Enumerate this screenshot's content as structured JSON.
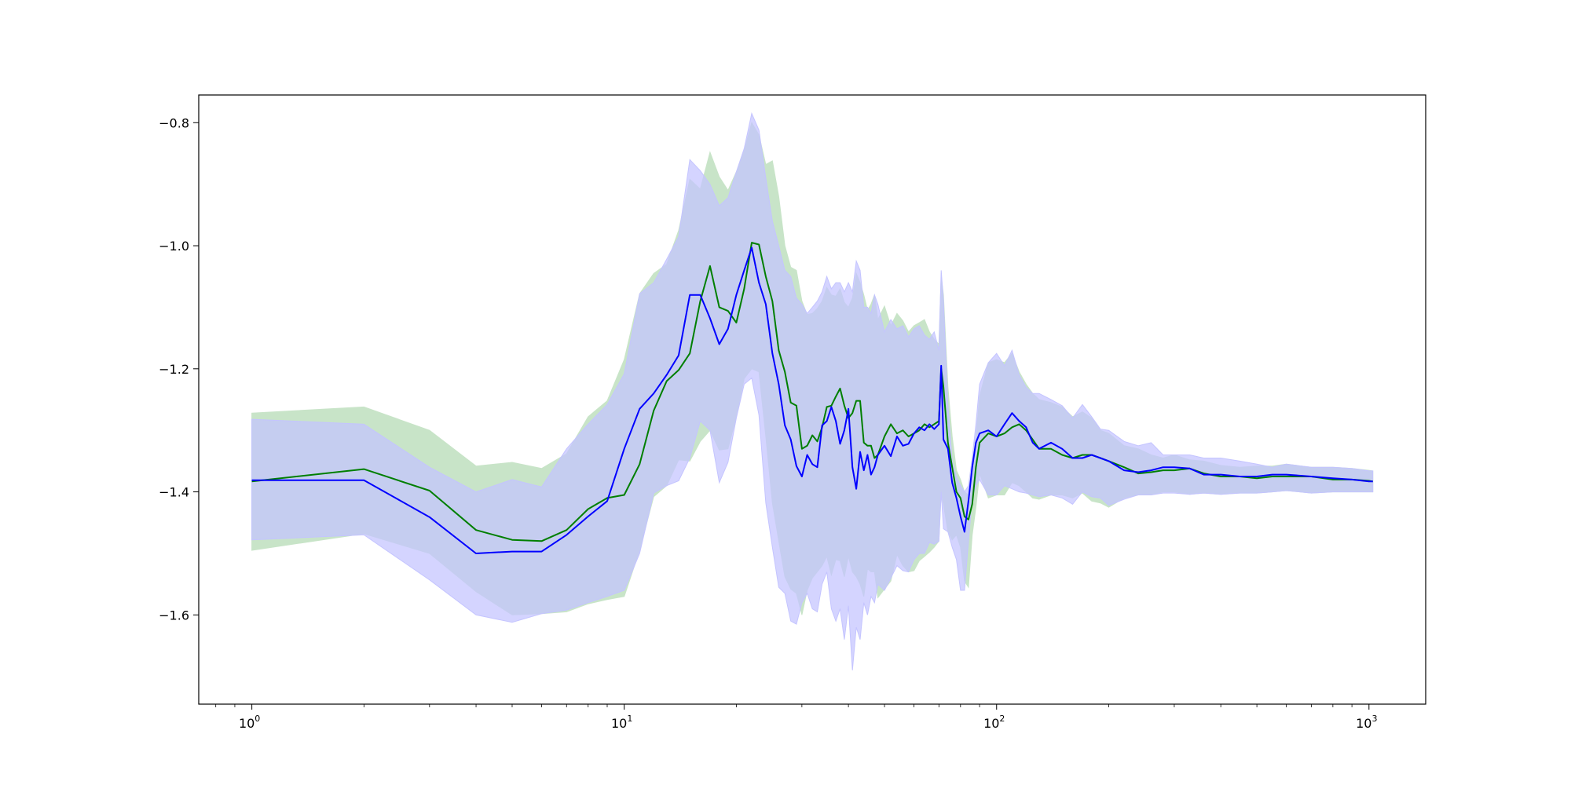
{
  "chart_data": {
    "type": "line",
    "title": "",
    "xlabel": "",
    "ylabel": "",
    "x_scale": "log",
    "xlim": [
      0.72,
      1420
    ],
    "ylim": [
      -1.745,
      -0.755
    ],
    "grid": false,
    "x_major_ticks": [
      {
        "value": 1,
        "base": "10",
        "exp": "0"
      },
      {
        "value": 10,
        "base": "10",
        "exp": "1"
      },
      {
        "value": 100,
        "base": "10",
        "exp": "2"
      },
      {
        "value": 1000,
        "base": "10",
        "exp": "3"
      }
    ],
    "y_ticks": [
      {
        "value": -0.8,
        "label": "−0.8"
      },
      {
        "value": -1.0,
        "label": "−1.0"
      },
      {
        "value": -1.2,
        "label": "−1.2"
      },
      {
        "value": -1.4,
        "label": "−1.4"
      },
      {
        "value": -1.6,
        "label": "−1.6"
      }
    ],
    "colors": {
      "green_line": "#007f00",
      "green_fill": "#c8e4c8",
      "blue_line": "#0000ff",
      "blue_fill": "#c4c4ff",
      "overlap_fill": "#a0b4d6"
    },
    "series": [
      {
        "color": "#007f00",
        "band_color": "#c8e4c8",
        "x": [
          1,
          2,
          3,
          4,
          5,
          6,
          7,
          8,
          9,
          10,
          11,
          12,
          13,
          14,
          15,
          16,
          17,
          18,
          19,
          20,
          21,
          22,
          23,
          24,
          25,
          26,
          27,
          28,
          29,
          30,
          31,
          32,
          33,
          34,
          35,
          36,
          37,
          38,
          39,
          40,
          41,
          42,
          43,
          44,
          45,
          46,
          47,
          48,
          50,
          52,
          54,
          56,
          58,
          60,
          62,
          64,
          66,
          68,
          70,
          71,
          72,
          74,
          76,
          78,
          80,
          82,
          84,
          86,
          88,
          90,
          95,
          100,
          105,
          110,
          115,
          120,
          125,
          130,
          140,
          150,
          160,
          170,
          180,
          190,
          200,
          220,
          240,
          260,
          280,
          300,
          330,
          360,
          400,
          450,
          500,
          550,
          600,
          700,
          800,
          900,
          1000,
          1024
        ],
        "y": [
          -1.383,
          -1.363,
          -1.398,
          -1.462,
          -1.478,
          -1.48,
          -1.462,
          -1.428,
          -1.41,
          -1.405,
          -1.355,
          -1.268,
          -1.22,
          -1.202,
          -1.175,
          -1.09,
          -1.033,
          -1.1,
          -1.106,
          -1.125,
          -1.07,
          -0.995,
          -0.998,
          -1.05,
          -1.09,
          -1.17,
          -1.205,
          -1.255,
          -1.26,
          -1.33,
          -1.325,
          -1.308,
          -1.318,
          -1.295,
          -1.262,
          -1.26,
          -1.245,
          -1.232,
          -1.26,
          -1.28,
          -1.272,
          -1.252,
          -1.252,
          -1.32,
          -1.325,
          -1.325,
          -1.345,
          -1.34,
          -1.31,
          -1.29,
          -1.305,
          -1.3,
          -1.31,
          -1.305,
          -1.3,
          -1.29,
          -1.295,
          -1.29,
          -1.285,
          -1.2,
          -1.23,
          -1.32,
          -1.36,
          -1.4,
          -1.41,
          -1.44,
          -1.445,
          -1.42,
          -1.36,
          -1.32,
          -1.305,
          -1.31,
          -1.305,
          -1.295,
          -1.29,
          -1.3,
          -1.315,
          -1.33,
          -1.33,
          -1.34,
          -1.345,
          -1.34,
          -1.34,
          -1.345,
          -1.35,
          -1.36,
          -1.37,
          -1.368,
          -1.365,
          -1.365,
          -1.362,
          -1.37,
          -1.375,
          -1.375,
          -1.378,
          -1.375,
          -1.375,
          -1.375,
          -1.38,
          -1.38,
          -1.382,
          -1.383
        ],
        "upper": [
          -1.272,
          -1.262,
          -1.3,
          -1.358,
          -1.352,
          -1.362,
          -1.338,
          -1.278,
          -1.252,
          -1.185,
          -1.078,
          -1.045,
          -1.03,
          -0.975,
          -0.892,
          -0.908,
          -0.848,
          -0.888,
          -0.91,
          -0.88,
          -0.845,
          -0.8,
          -0.82,
          -0.868,
          -0.862,
          -0.92,
          -1.0,
          -1.035,
          -1.04,
          -1.09,
          -1.112,
          -1.11,
          -1.102,
          -1.09,
          -1.068,
          -1.08,
          -1.082,
          -1.07,
          -1.092,
          -1.1,
          -1.085,
          -1.045,
          -1.06,
          -1.08,
          -1.105,
          -1.095,
          -1.08,
          -1.12,
          -1.098,
          -1.13,
          -1.11,
          -1.122,
          -1.14,
          -1.13,
          -1.125,
          -1.12,
          -1.14,
          -1.152,
          -1.16,
          -1.05,
          -1.08,
          -1.23,
          -1.31,
          -1.365,
          -1.38,
          -1.4,
          -1.405,
          -1.35,
          -1.31,
          -1.245,
          -1.19,
          -1.185,
          -1.19,
          -1.175,
          -1.205,
          -1.225,
          -1.24,
          -1.25,
          -1.255,
          -1.262,
          -1.278,
          -1.27,
          -1.28,
          -1.3,
          -1.305,
          -1.325,
          -1.33,
          -1.34,
          -1.345,
          -1.34,
          -1.348,
          -1.35,
          -1.357,
          -1.36,
          -1.358,
          -1.358,
          -1.355,
          -1.36,
          -1.36,
          -1.362,
          -1.365,
          -1.366
        ],
        "lower": [
          -1.495,
          -1.468,
          -1.5,
          -1.562,
          -1.6,
          -1.598,
          -1.595,
          -1.582,
          -1.575,
          -1.57,
          -1.495,
          -1.408,
          -1.39,
          -1.348,
          -1.35,
          -1.318,
          -1.3,
          -1.332,
          -1.33,
          -1.278,
          -1.216,
          -1.2,
          -1.205,
          -1.31,
          -1.418,
          -1.48,
          -1.538,
          -1.558,
          -1.565,
          -1.6,
          -1.56,
          -1.54,
          -1.53,
          -1.52,
          -1.505,
          -1.535,
          -1.51,
          -1.512,
          -1.538,
          -1.505,
          -1.53,
          -1.538,
          -1.55,
          -1.57,
          -1.525,
          -1.53,
          -1.53,
          -1.572,
          -1.558,
          -1.545,
          -1.502,
          -1.52,
          -1.53,
          -1.528,
          -1.512,
          -1.505,
          -1.498,
          -1.49,
          -1.48,
          -1.4,
          -1.42,
          -1.465,
          -1.478,
          -1.47,
          -1.49,
          -1.545,
          -1.555,
          -1.47,
          -1.425,
          -1.37,
          -1.41,
          -1.405,
          -1.405,
          -1.385,
          -1.39,
          -1.4,
          -1.41,
          -1.412,
          -1.405,
          -1.405,
          -1.41,
          -1.402,
          -1.415,
          -1.418,
          -1.425,
          -1.41,
          -1.405,
          -1.405,
          -1.4,
          -1.4,
          -1.404,
          -1.402,
          -1.404,
          -1.402,
          -1.402,
          -1.4,
          -1.398,
          -1.402,
          -1.4,
          -1.4,
          -1.4,
          -1.4
        ]
      },
      {
        "color": "#0000ff",
        "band_color": "#c4c4ff",
        "x": [
          1,
          2,
          3,
          4,
          5,
          6,
          7,
          8,
          9,
          10,
          11,
          12,
          13,
          14,
          15,
          16,
          17,
          18,
          19,
          20,
          21,
          22,
          23,
          24,
          25,
          26,
          27,
          28,
          29,
          30,
          31,
          32,
          33,
          34,
          35,
          36,
          37,
          38,
          39,
          40,
          41,
          42,
          43,
          44,
          45,
          46,
          47,
          48,
          50,
          52,
          54,
          56,
          58,
          60,
          62,
          64,
          66,
          68,
          70,
          71,
          72,
          74,
          76,
          78,
          80,
          82,
          84,
          86,
          88,
          90,
          95,
          100,
          105,
          110,
          115,
          120,
          125,
          130,
          140,
          150,
          160,
          170,
          180,
          190,
          200,
          220,
          240,
          260,
          280,
          300,
          330,
          360,
          400,
          450,
          500,
          550,
          600,
          700,
          800,
          900,
          1000,
          1024
        ],
        "y": [
          -1.381,
          -1.381,
          -1.441,
          -1.5,
          -1.497,
          -1.497,
          -1.47,
          -1.44,
          -1.415,
          -1.33,
          -1.265,
          -1.24,
          -1.21,
          -1.178,
          -1.08,
          -1.08,
          -1.118,
          -1.16,
          -1.135,
          -1.08,
          -1.04,
          -1.003,
          -1.06,
          -1.095,
          -1.175,
          -1.225,
          -1.292,
          -1.315,
          -1.358,
          -1.375,
          -1.34,
          -1.355,
          -1.36,
          -1.292,
          -1.285,
          -1.262,
          -1.285,
          -1.322,
          -1.3,
          -1.265,
          -1.36,
          -1.395,
          -1.335,
          -1.365,
          -1.34,
          -1.372,
          -1.36,
          -1.34,
          -1.325,
          -1.342,
          -1.31,
          -1.325,
          -1.322,
          -1.305,
          -1.295,
          -1.3,
          -1.29,
          -1.298,
          -1.29,
          -1.195,
          -1.315,
          -1.33,
          -1.385,
          -1.41,
          -1.44,
          -1.465,
          -1.415,
          -1.36,
          -1.32,
          -1.305,
          -1.3,
          -1.31,
          -1.29,
          -1.272,
          -1.285,
          -1.295,
          -1.32,
          -1.33,
          -1.32,
          -1.33,
          -1.345,
          -1.345,
          -1.34,
          -1.345,
          -1.35,
          -1.365,
          -1.368,
          -1.365,
          -1.36,
          -1.36,
          -1.362,
          -1.372,
          -1.372,
          -1.375,
          -1.375,
          -1.372,
          -1.372,
          -1.375,
          -1.378,
          -1.38,
          -1.383,
          -1.383
        ],
        "upper": [
          -1.282,
          -1.29,
          -1.36,
          -1.4,
          -1.38,
          -1.392,
          -1.33,
          -1.29,
          -1.258,
          -1.208,
          -1.078,
          -1.06,
          -1.022,
          -0.985,
          -0.86,
          -0.878,
          -0.9,
          -0.935,
          -0.922,
          -0.88,
          -0.842,
          -0.785,
          -0.812,
          -0.89,
          -0.96,
          -1.0,
          -1.04,
          -1.05,
          -1.085,
          -1.095,
          -1.11,
          -1.1,
          -1.09,
          -1.075,
          -1.05,
          -1.07,
          -1.06,
          -1.06,
          -1.075,
          -1.06,
          -1.075,
          -1.025,
          -1.04,
          -1.1,
          -1.1,
          -1.11,
          -1.08,
          -1.095,
          -1.14,
          -1.12,
          -1.135,
          -1.13,
          -1.148,
          -1.135,
          -1.13,
          -1.145,
          -1.152,
          -1.14,
          -1.17,
          -1.04,
          -1.09,
          -1.26,
          -1.35,
          -1.375,
          -1.39,
          -1.4,
          -1.39,
          -1.345,
          -1.29,
          -1.225,
          -1.19,
          -1.175,
          -1.195,
          -1.17,
          -1.21,
          -1.23,
          -1.24,
          -1.24,
          -1.25,
          -1.26,
          -1.28,
          -1.258,
          -1.278,
          -1.298,
          -1.3,
          -1.318,
          -1.325,
          -1.32,
          -1.34,
          -1.34,
          -1.34,
          -1.345,
          -1.345,
          -1.35,
          -1.355,
          -1.36,
          -1.355,
          -1.36,
          -1.36,
          -1.362,
          -1.366,
          -1.366
        ],
        "lower": [
          -1.478,
          -1.47,
          -1.543,
          -1.6,
          -1.612,
          -1.598,
          -1.592,
          -1.58,
          -1.57,
          -1.56,
          -1.5,
          -1.402,
          -1.39,
          -1.382,
          -1.345,
          -1.285,
          -1.3,
          -1.385,
          -1.352,
          -1.28,
          -1.225,
          -1.215,
          -1.275,
          -1.418,
          -1.49,
          -1.555,
          -1.565,
          -1.61,
          -1.615,
          -1.58,
          -1.565,
          -1.59,
          -1.595,
          -1.55,
          -1.53,
          -1.59,
          -1.61,
          -1.59,
          -1.64,
          -1.585,
          -1.69,
          -1.62,
          -1.64,
          -1.58,
          -1.6,
          -1.57,
          -1.58,
          -1.55,
          -1.56,
          -1.54,
          -1.52,
          -1.528,
          -1.53,
          -1.51,
          -1.5,
          -1.5,
          -1.482,
          -1.485,
          -1.48,
          -1.4,
          -1.46,
          -1.465,
          -1.49,
          -1.51,
          -1.56,
          -1.56,
          -1.48,
          -1.41,
          -1.39,
          -1.38,
          -1.405,
          -1.405,
          -1.39,
          -1.395,
          -1.4,
          -1.402,
          -1.405,
          -1.408,
          -1.405,
          -1.41,
          -1.42,
          -1.4,
          -1.408,
          -1.41,
          -1.422,
          -1.412,
          -1.405,
          -1.405,
          -1.402,
          -1.402,
          -1.404,
          -1.402,
          -1.404,
          -1.402,
          -1.402,
          -1.4,
          -1.398,
          -1.402,
          -1.4,
          -1.4,
          -1.4,
          -1.4
        ]
      }
    ]
  }
}
